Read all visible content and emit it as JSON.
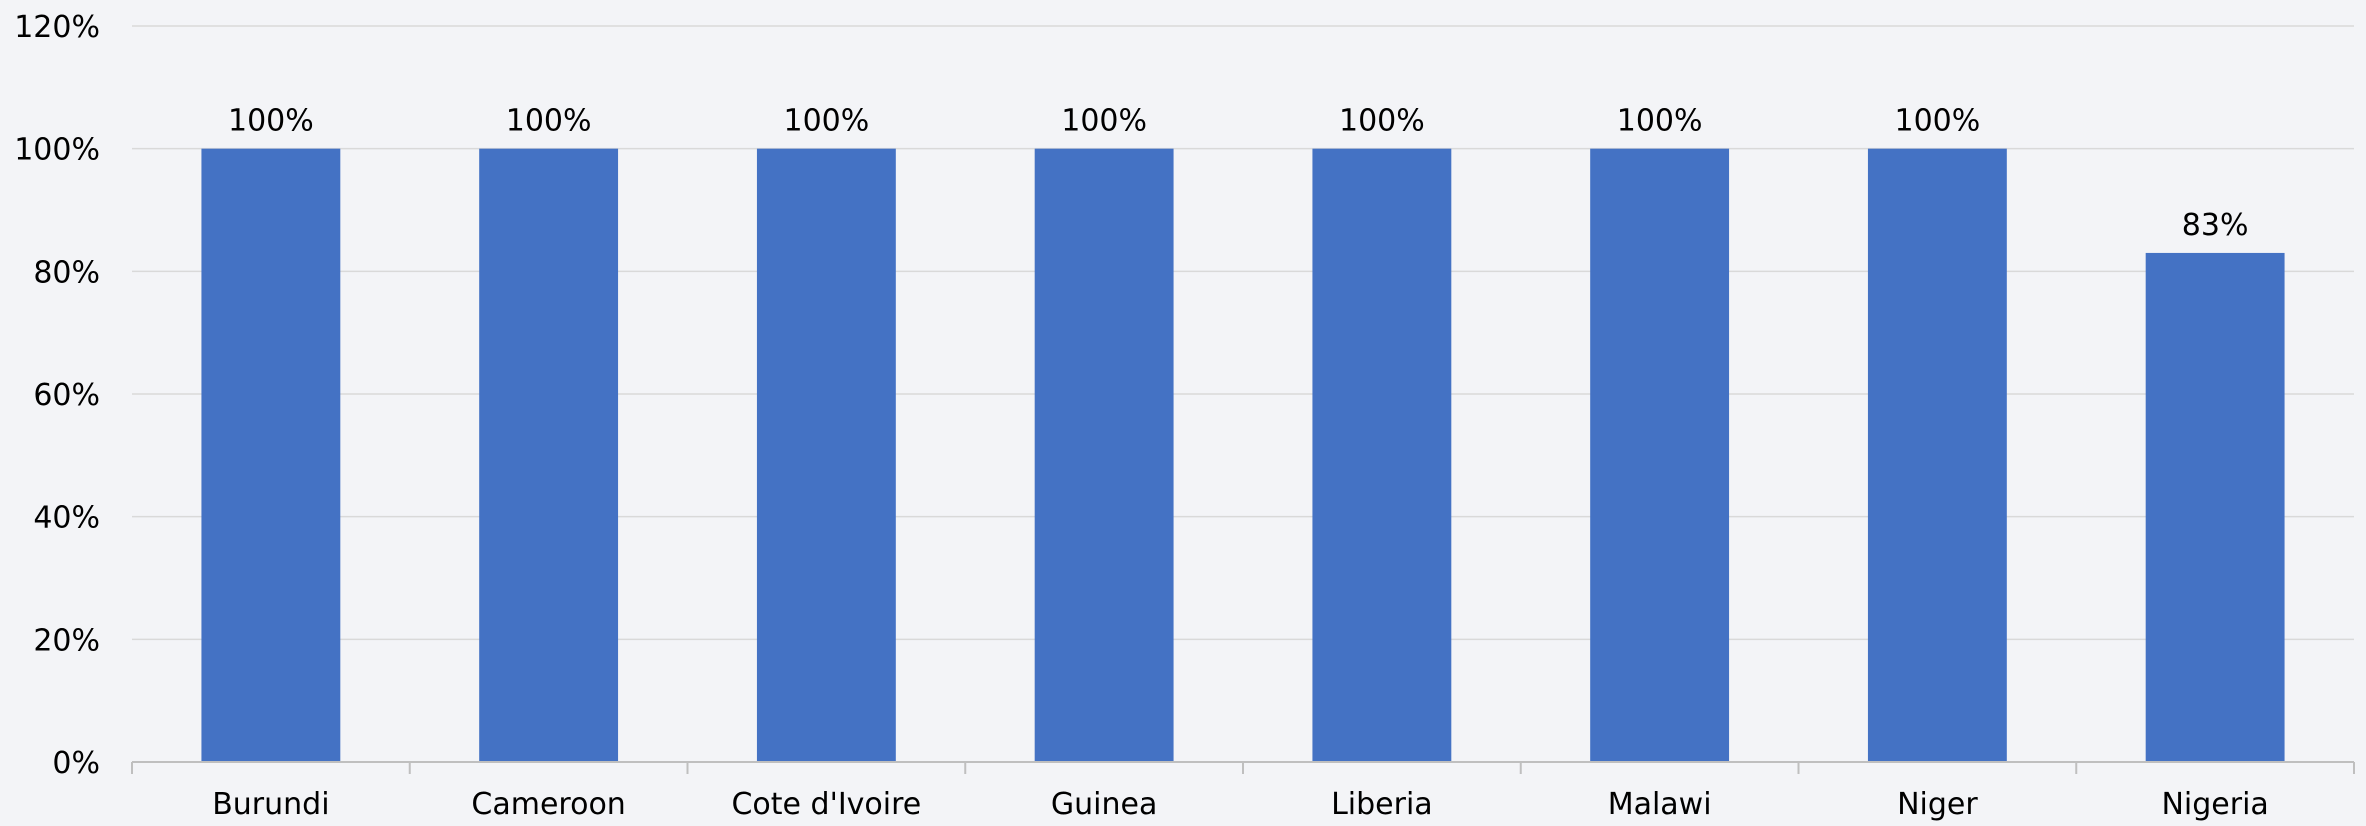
{
  "chart_data": {
    "type": "bar",
    "title": "",
    "xlabel": "",
    "ylabel": "",
    "categories": [
      "Burundi",
      "Cameroon",
      "Cote d'Ivoire",
      "Guinea",
      "Liberia",
      "Malawi",
      "Niger",
      "Nigeria"
    ],
    "values": [
      100,
      100,
      100,
      100,
      100,
      100,
      100,
      83
    ],
    "data_labels": [
      "100%",
      "100%",
      "100%",
      "100%",
      "100%",
      "100%",
      "100%",
      "83%"
    ],
    "ylim": [
      0,
      120
    ],
    "yticks": [
      0,
      20,
      40,
      60,
      80,
      100,
      120
    ],
    "ytick_labels": [
      "0%",
      "20%",
      "40%",
      "60%",
      "80%",
      "100%",
      "120%"
    ],
    "grid": true,
    "legend": "none",
    "colors": {
      "bar": "#4472c4",
      "gridline": "#d9d9d9",
      "axis": "#bfbfbf",
      "background": "#f3f4f7"
    }
  }
}
